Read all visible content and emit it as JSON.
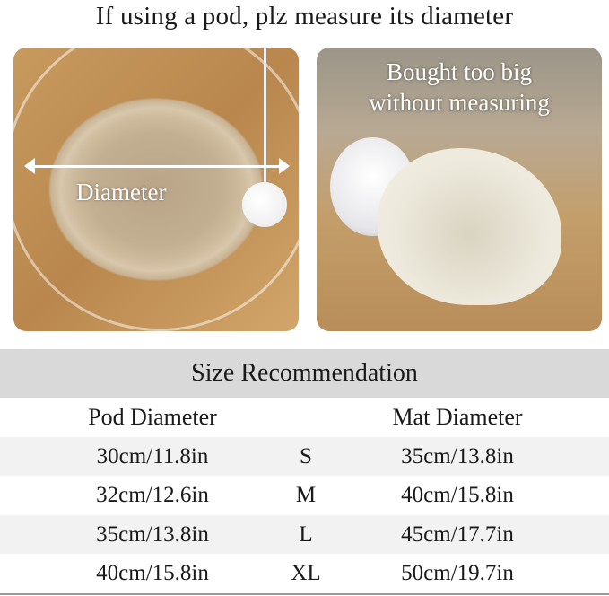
{
  "title": "If using a pod, plz measure its diameter",
  "photos": [
    {
      "label": "Diameter"
    },
    {
      "label_line1": "Bought too big",
      "label_line2": "without measuring"
    }
  ],
  "table": {
    "title": "Size Recommendation",
    "headers": [
      "Pod Diameter",
      "",
      "Mat Diameter"
    ],
    "rows": [
      {
        "pod": "30cm/11.8in",
        "size": "S",
        "mat": "35cm/13.8in"
      },
      {
        "pod": "32cm/12.6in",
        "size": "M",
        "mat": "40cm/15.8in"
      },
      {
        "pod": "35cm/13.8in",
        "size": "L",
        "mat": "45cm/17.7in"
      },
      {
        "pod": "40cm/15.8in",
        "size": "XL",
        "mat": "50cm/19.7in"
      }
    ]
  }
}
